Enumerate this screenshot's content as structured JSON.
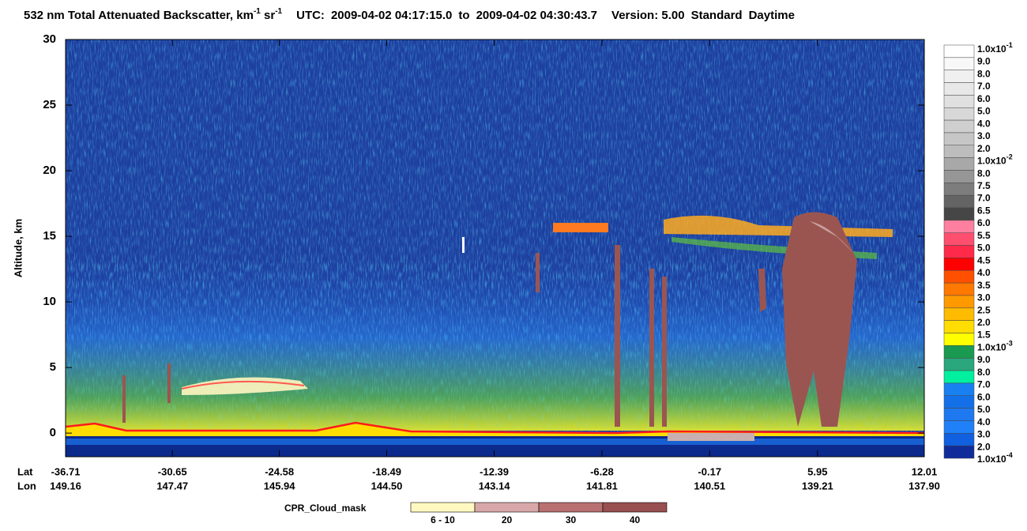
{
  "chart_data": {
    "type": "heatmap",
    "title_parts": [
      "532 nm Total Attenuated Backscatter, km",
      "-1",
      " sr",
      "-1"
    ],
    "utc_label": "UTC:",
    "start_time": "2009-04-02 04:17:15.0",
    "to_label": "to",
    "end_time": "2009-04-02 04:30:43.7",
    "version": "Version: 5.00",
    "product": "Standard",
    "lighting": "Daytime",
    "ylabel": "Altitude, km",
    "ylim": [
      -1.8,
      30
    ],
    "yticks": [
      0,
      5,
      10,
      15,
      20,
      25,
      30
    ],
    "x_row_labels": [
      "Lat",
      "Lon"
    ],
    "xlim": [
      -36.71,
      12.01
    ],
    "xticks": [
      -36.71,
      -30.65,
      -24.58,
      -18.49,
      -12.39,
      -6.28,
      -0.17,
      5.95,
      12.01
    ],
    "lon_labels": [
      "149.16",
      "147.47",
      "145.94",
      "144.50",
      "143.14",
      "141.81",
      "140.51",
      "139.21",
      "137.90"
    ],
    "colorbar": [
      {
        "value": 0.1,
        "label": "1.0x10",
        "sup": "-1"
      },
      {
        "value": 0.09,
        "label": "9.0"
      },
      {
        "value": 0.08,
        "label": "8.0"
      },
      {
        "value": 0.07,
        "label": "7.0"
      },
      {
        "value": 0.06,
        "label": "6.0"
      },
      {
        "value": 0.05,
        "label": "5.0"
      },
      {
        "value": 0.04,
        "label": "4.0"
      },
      {
        "value": 0.03,
        "label": "3.0"
      },
      {
        "value": 0.02,
        "label": "2.0"
      },
      {
        "value": 0.01,
        "label": "1.0x10",
        "sup": "-2"
      },
      {
        "value": 0.008,
        "label": "8.0"
      },
      {
        "value": 0.0075,
        "label": "7.5"
      },
      {
        "value": 0.007,
        "label": "7.0"
      },
      {
        "value": 0.0065,
        "label": "6.5"
      },
      {
        "value": 0.006,
        "label": "6.0"
      },
      {
        "value": 0.0055,
        "label": "5.5"
      },
      {
        "value": 0.005,
        "label": "5.0"
      },
      {
        "value": 0.0045,
        "label": "4.5"
      },
      {
        "value": 0.004,
        "label": "4.0"
      },
      {
        "value": 0.0035,
        "label": "3.5"
      },
      {
        "value": 0.003,
        "label": "3.0"
      },
      {
        "value": 0.0025,
        "label": "2.5"
      },
      {
        "value": 0.002,
        "label": "2.0"
      },
      {
        "value": 0.0015,
        "label": "1.5"
      },
      {
        "value": 0.001,
        "label": "1.0x10",
        "sup": "-3"
      },
      {
        "value": 0.0009,
        "label": "9.0"
      },
      {
        "value": 0.0008,
        "label": "8.0"
      },
      {
        "value": 0.0007,
        "label": "7.0"
      },
      {
        "value": 0.0006,
        "label": "6.0"
      },
      {
        "value": 0.0005,
        "label": "5.0"
      },
      {
        "value": 0.0004,
        "label": "4.0"
      },
      {
        "value": 0.0003,
        "label": "3.0"
      },
      {
        "value": 0.0002,
        "label": "2.0"
      },
      {
        "value": 0.0001,
        "label": "1.0x10",
        "sup": "-4"
      }
    ],
    "colorbar_colors": [
      "#ffffff",
      "#f8f8f8",
      "#f0f0f0",
      "#e8e8e8",
      "#e0e0e0",
      "#d8d8d8",
      "#cfcfcf",
      "#c6c6c6",
      "#bdbdbd",
      "#a8a8a8",
      "#969696",
      "#7d7d7d",
      "#646464",
      "#464646",
      "#ff7fa0",
      "#ff4f6f",
      "#ff2a4a",
      "#ff0000",
      "#ff5000",
      "#ff7800",
      "#ff9900",
      "#ffbb00",
      "#ffdd00",
      "#ffff00",
      "#1a9a50",
      "#2aa77c",
      "#00f0a0",
      "#1880f0",
      "#1470e8",
      "#1e78f0",
      "#2080f8",
      "#1060e0",
      "#102c9a"
    ],
    "cpr_title": "CPR_Cloud_mask",
    "cpr_categories": [
      "6 - 10",
      "20",
      "30",
      "40"
    ],
    "cpr_colors": [
      "#fff8c0",
      "#d8a8a8",
      "#b87070",
      "#985050"
    ]
  }
}
